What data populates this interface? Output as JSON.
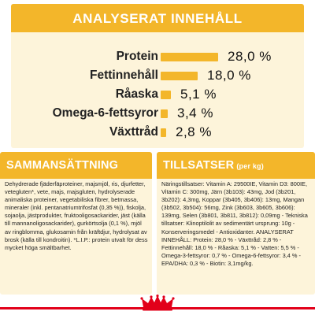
{
  "analysis": {
    "title": "ANALYSERAT INNEHÅLL",
    "bar_max_percent": 28.0,
    "items": [
      {
        "name": "Protein",
        "value": "28,0 %",
        "percent": 28.0
      },
      {
        "name": "Fettinnehåll",
        "value": "18,0 %",
        "percent": 18.0
      },
      {
        "name": "Råaska",
        "value": "5,1 %",
        "percent": 5.1
      },
      {
        "name": "Omega-6-fettsyror",
        "value": "3,4 %",
        "percent": 3.4
      },
      {
        "name": "Växttråd",
        "value": "2,8 %",
        "percent": 2.8
      }
    ]
  },
  "composition": {
    "title": "SAMMANSÄTTNING",
    "text": "Dehydrerade fjäderfäproteiner, majsmjöl, ris, djurfetter, vetegluten*, vete, majs, majsgluten, hydrolyserade animaliska proteiner, vegetabiliska fibrer, betmassa, mineraler (inkl. pentanatriumtrifosfat (0,35 %)), fiskolja, sojaolja, jästprodukter, fruktooligosackarider, jäst (källa till mannanoligosackarider), gurkörtsolja (0,1 %), mjöl av ringblomma, glukosamin från kräftdjur, hydrolysat av brosk (källa till kondroitin). *L.I.P.: protein utvalt för dess mycket höga smältbarhet."
  },
  "additives": {
    "title": "TILLSATSER",
    "subtitle": "(per kg)",
    "text": "Näringstillsatser: Vitamin A: 29500IE, Vitamin D3: 800IE, Vitamin C: 300mg, Järn (3b103): 43mg, Jod (3b201, 3b202): 4,3mg, Koppar (3b405, 3b406): 13mg, Mangan (3b502, 3b504): 56mg, Zink (3b603, 3b605, 3b606): 139mg, Selen (3b801, 3b811, 3b812): 0,09mg - Tekniska tillsatser: Klinoptilolit av sedimentärt ursprung: 10g - Konserveringsmedel - Antioxidanter. ANALYSERAT INNEHÅLL: Protein: 28,0 % - Växttråd: 2,8 % - Fettinnehåll: 18,0 % - Råaska: 5,1 % - Vatten: 5,5 % - Omega-3-fettsyror: 0,7 % - Omega-6-fettsyror: 3,4 % - EPA/DHA: 0,3 % - Biotin: 3,1mg/kg."
  },
  "colors": {
    "accent": "#f3b62a",
    "panel_bg": "#fdf4da",
    "brand_red": "#e2001a"
  },
  "logo": {
    "icon": "royal-canin-crown-icon"
  }
}
